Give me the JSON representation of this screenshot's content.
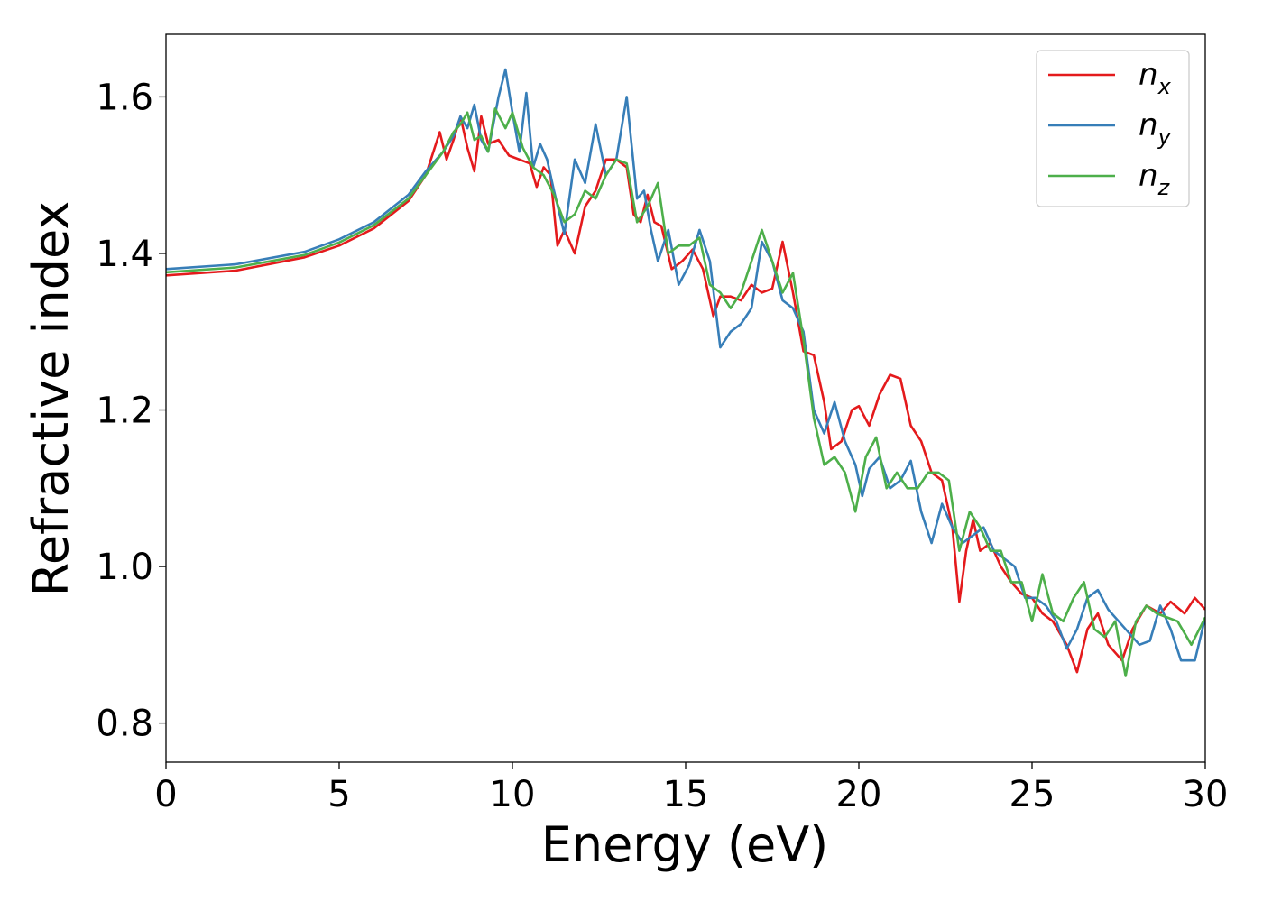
{
  "chart_data": {
    "type": "line",
    "title": "",
    "xlabel": "Energy (eV)",
    "ylabel": "Refractive index",
    "xlim": [
      0,
      30
    ],
    "ylim": [
      0.75,
      1.68
    ],
    "xticks": [
      0,
      5,
      10,
      15,
      20,
      25,
      30
    ],
    "xtick_labels": [
      "0",
      "5",
      "10",
      "15",
      "20",
      "25",
      "30"
    ],
    "yticks": [
      0.8,
      1.0,
      1.2,
      1.4,
      1.6
    ],
    "ytick_labels": [
      "0.8",
      "1.0",
      "1.2",
      "1.4",
      "1.6"
    ],
    "grid": false,
    "legend_position": "top-right",
    "series": [
      {
        "name": "n_x",
        "label_base": "n",
        "label_sub": "x",
        "color": "#e41a1c",
        "x": [
          0,
          2,
          4,
          5,
          6,
          7,
          7.5,
          7.9,
          8.1,
          8.3,
          8.5,
          8.7,
          8.9,
          9.1,
          9.3,
          9.6,
          9.9,
          10.2,
          10.5,
          10.7,
          10.9,
          11.1,
          11.3,
          11.5,
          11.8,
          12.1,
          12.4,
          12.7,
          13.0,
          13.3,
          13.5,
          13.7,
          13.9,
          14.1,
          14.3,
          14.6,
          14.9,
          15.2,
          15.5,
          15.8,
          16.0,
          16.3,
          16.6,
          16.9,
          17.2,
          17.5,
          17.8,
          18.1,
          18.4,
          18.7,
          19.0,
          19.2,
          19.5,
          19.8,
          20.0,
          20.3,
          20.6,
          20.9,
          21.2,
          21.5,
          21.8,
          22.1,
          22.4,
          22.7,
          22.9,
          23.1,
          23.3,
          23.5,
          23.8,
          24.1,
          24.4,
          24.7,
          25.0,
          25.3,
          25.6,
          26.0,
          26.3,
          26.6,
          26.9,
          27.2,
          27.6,
          27.9,
          28.3,
          28.7,
          29.0,
          29.4,
          29.7,
          30.0
        ],
        "y": [
          1.372,
          1.378,
          1.395,
          1.41,
          1.432,
          1.467,
          1.5,
          1.555,
          1.52,
          1.545,
          1.575,
          1.535,
          1.505,
          1.575,
          1.54,
          1.545,
          1.525,
          1.52,
          1.515,
          1.485,
          1.51,
          1.5,
          1.41,
          1.43,
          1.4,
          1.46,
          1.48,
          1.52,
          1.52,
          1.51,
          1.45,
          1.44,
          1.475,
          1.44,
          1.435,
          1.38,
          1.39,
          1.405,
          1.38,
          1.32,
          1.345,
          1.345,
          1.34,
          1.36,
          1.35,
          1.355,
          1.415,
          1.35,
          1.275,
          1.27,
          1.21,
          1.15,
          1.16,
          1.2,
          1.205,
          1.18,
          1.22,
          1.245,
          1.24,
          1.18,
          1.16,
          1.12,
          1.11,
          1.05,
          0.955,
          1.02,
          1.06,
          1.02,
          1.03,
          1.0,
          0.98,
          0.965,
          0.96,
          0.94,
          0.93,
          0.9,
          0.865,
          0.92,
          0.94,
          0.9,
          0.88,
          0.92,
          0.95,
          0.94,
          0.955,
          0.94,
          0.96,
          0.945
        ]
      },
      {
        "name": "n_y",
        "label_base": "n",
        "label_sub": "y",
        "color": "#377eb8",
        "x": [
          0,
          2,
          4,
          5,
          6,
          7,
          7.5,
          8.0,
          8.3,
          8.5,
          8.7,
          8.9,
          9.1,
          9.3,
          9.6,
          9.8,
          10.0,
          10.2,
          10.4,
          10.6,
          10.8,
          11.0,
          11.2,
          11.5,
          11.8,
          12.1,
          12.4,
          12.7,
          13.0,
          13.3,
          13.6,
          13.8,
          14.0,
          14.2,
          14.5,
          14.8,
          15.1,
          15.4,
          15.7,
          16.0,
          16.3,
          16.6,
          16.9,
          17.2,
          17.5,
          17.8,
          18.1,
          18.4,
          18.7,
          19.0,
          19.3,
          19.6,
          19.9,
          20.1,
          20.3,
          20.6,
          20.9,
          21.2,
          21.5,
          21.8,
          22.1,
          22.4,
          22.7,
          23.0,
          23.3,
          23.6,
          23.9,
          24.2,
          24.5,
          24.8,
          25.1,
          25.4,
          25.7,
          26.0,
          26.3,
          26.6,
          26.9,
          27.2,
          27.5,
          27.8,
          28.1,
          28.4,
          28.7,
          29.0,
          29.3,
          29.7,
          30.0
        ],
        "y": [
          1.38,
          1.386,
          1.402,
          1.418,
          1.44,
          1.475,
          1.505,
          1.53,
          1.55,
          1.575,
          1.56,
          1.59,
          1.545,
          1.53,
          1.6,
          1.635,
          1.58,
          1.53,
          1.605,
          1.51,
          1.54,
          1.52,
          1.48,
          1.425,
          1.52,
          1.49,
          1.565,
          1.5,
          1.52,
          1.6,
          1.47,
          1.48,
          1.43,
          1.39,
          1.43,
          1.36,
          1.385,
          1.43,
          1.39,
          1.28,
          1.3,
          1.31,
          1.33,
          1.415,
          1.39,
          1.34,
          1.33,
          1.3,
          1.2,
          1.17,
          1.21,
          1.16,
          1.13,
          1.09,
          1.125,
          1.14,
          1.1,
          1.11,
          1.135,
          1.07,
          1.03,
          1.08,
          1.05,
          1.03,
          1.04,
          1.05,
          1.02,
          1.01,
          1.0,
          0.96,
          0.96,
          0.95,
          0.93,
          0.895,
          0.92,
          0.96,
          0.97,
          0.945,
          0.93,
          0.915,
          0.9,
          0.905,
          0.95,
          0.92,
          0.88,
          0.88,
          0.935
        ]
      },
      {
        "name": "n_z",
        "label_base": "n",
        "label_sub": "z",
        "color": "#4daf4a",
        "x": [
          0,
          2,
          4,
          5,
          6,
          7,
          7.5,
          8.0,
          8.3,
          8.5,
          8.7,
          8.9,
          9.1,
          9.3,
          9.5,
          9.8,
          10.0,
          10.3,
          10.6,
          10.9,
          11.2,
          11.5,
          11.8,
          12.1,
          12.4,
          12.7,
          13.0,
          13.3,
          13.6,
          13.9,
          14.2,
          14.5,
          14.8,
          15.1,
          15.4,
          15.7,
          16.0,
          16.3,
          16.6,
          16.9,
          17.2,
          17.5,
          17.8,
          18.1,
          18.4,
          18.7,
          19.0,
          19.3,
          19.6,
          19.9,
          20.2,
          20.5,
          20.8,
          21.1,
          21.4,
          21.7,
          22.0,
          22.3,
          22.6,
          22.9,
          23.2,
          23.5,
          23.8,
          24.1,
          24.4,
          24.7,
          25.0,
          25.3,
          25.6,
          25.9,
          26.2,
          26.5,
          26.8,
          27.1,
          27.4,
          27.7,
          28.0,
          28.3,
          28.6,
          28.9,
          29.2,
          29.6,
          30.0
        ],
        "y": [
          1.376,
          1.382,
          1.398,
          1.414,
          1.436,
          1.47,
          1.5,
          1.53,
          1.555,
          1.565,
          1.58,
          1.545,
          1.55,
          1.53,
          1.585,
          1.56,
          1.58,
          1.535,
          1.51,
          1.5,
          1.475,
          1.44,
          1.45,
          1.48,
          1.47,
          1.5,
          1.52,
          1.515,
          1.44,
          1.46,
          1.49,
          1.4,
          1.41,
          1.41,
          1.42,
          1.36,
          1.35,
          1.33,
          1.35,
          1.39,
          1.43,
          1.39,
          1.35,
          1.375,
          1.29,
          1.19,
          1.13,
          1.14,
          1.12,
          1.07,
          1.14,
          1.165,
          1.1,
          1.12,
          1.1,
          1.1,
          1.12,
          1.12,
          1.11,
          1.02,
          1.07,
          1.05,
          1.02,
          1.02,
          0.98,
          0.98,
          0.93,
          0.99,
          0.94,
          0.93,
          0.96,
          0.98,
          0.92,
          0.91,
          0.93,
          0.86,
          0.93,
          0.95,
          0.94,
          0.935,
          0.93,
          0.9,
          0.935
        ]
      }
    ]
  }
}
